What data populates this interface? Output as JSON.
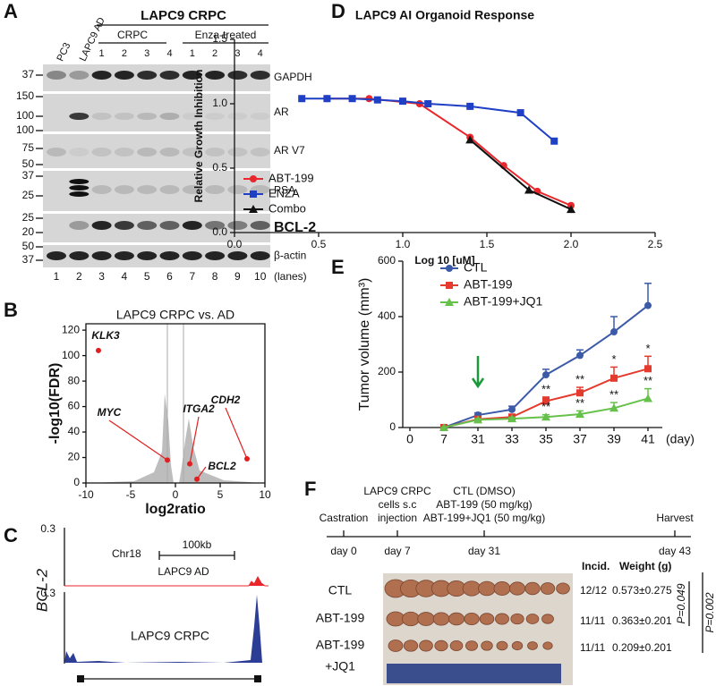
{
  "panel_letters": [
    "A",
    "B",
    "C",
    "D",
    "E",
    "F"
  ],
  "panel_a": {
    "header": "LAPC9 CRPC",
    "groups": [
      "CRPC",
      "Enza-treated"
    ],
    "cell_lines": [
      "PC3",
      "LAPC9 AD"
    ],
    "group_lanes": [
      "1",
      "2",
      "3",
      "4",
      "1",
      "2",
      "3",
      "4"
    ],
    "blots": [
      {
        "label": "GAPDH",
        "markers": [
          "37"
        ]
      },
      {
        "label": "AR",
        "markers": [
          "150",
          "100"
        ]
      },
      {
        "label": "AR V7",
        "markers": [
          "100",
          "75",
          "50"
        ]
      },
      {
        "label": "PSA",
        "markers": [
          "37",
          "25"
        ]
      },
      {
        "label": "BCL-2",
        "markers": [
          "25",
          "20"
        ]
      },
      {
        "label": "β-actin",
        "markers": [
          "50",
          "37"
        ]
      }
    ],
    "lanes": [
      "1",
      "2",
      "3",
      "4",
      "5",
      "6",
      "7",
      "8",
      "9",
      "10"
    ],
    "lanes_unit": "(lanes)"
  },
  "panel_c": {
    "chromosome": "Chr18",
    "scale": "100kb",
    "gene": "BCL-2",
    "tracks": [
      {
        "label": "LAPC9 AD",
        "max": "0.3"
      },
      {
        "label": "LAPC9 CRPC",
        "max": "0.3"
      }
    ]
  },
  "panel_f": {
    "timeline": [
      {
        "event": [
          "Castration"
        ],
        "day": "day 0"
      },
      {
        "event": [
          "LAPC9 CRPC",
          "cells s.c",
          "injection"
        ],
        "day": "day 7"
      },
      {
        "event": [
          "CTL (DMSO)",
          "ABT-199 (50 mg/kg)",
          "ABT-199+JQ1 (50 mg/kg)"
        ],
        "day": "day 31"
      },
      {
        "event": [
          "Harvest"
        ],
        "day": "day 43"
      }
    ],
    "table_header": [
      "Incid.",
      "Weight (g)"
    ],
    "groups": [
      {
        "label": [
          "CTL"
        ],
        "incidence": "12/12",
        "weight": "0.573±0.275"
      },
      {
        "label": [
          "ABT-199"
        ],
        "incidence": "11/11",
        "weight": "0.363±0.201"
      },
      {
        "label": [
          "ABT-199",
          "+JQ1"
        ],
        "incidence": "11/11",
        "weight": "0.209±0.201"
      }
    ],
    "p_values": [
      "P=0.049",
      "P=0.002"
    ]
  },
  "chart_data": [
    {
      "type": "scatter",
      "title": "LAPC9 CRPC vs. AD",
      "x_label": "log2ratio",
      "y_label": "-log10(FDR)",
      "x": [
        -8.6,
        -0.9,
        1.6,
        2.4,
        8
      ],
      "values": [
        104,
        18,
        15,
        3,
        19
      ],
      "labels": [
        "KLK3",
        "MYC",
        "ITGA2",
        "BCL2",
        "CDH2"
      ],
      "color": "#e02020",
      "xlim": [
        -10,
        10
      ],
      "xticks": [
        -10,
        -5,
        0,
        5,
        10
      ],
      "ylim": [
        0,
        125
      ],
      "yticks": [
        0,
        20,
        40,
        60,
        80,
        100,
        120
      ]
    },
    {
      "type": "line",
      "title": "LAPC9 AI Organoid Response",
      "x_label": "Log 10 [uM]",
      "y_label": "Relative Growth Inhibition",
      "legend": "lower left",
      "xlim": [
        0,
        2.5
      ],
      "xticks": [
        {
          "value": 0,
          "label": "0.0"
        },
        0.5,
        {
          "value": 1,
          "label": "1.0"
        },
        1.5,
        {
          "value": 2,
          "label": "2.0"
        },
        2.5
      ],
      "ylim": [
        0,
        1.5
      ],
      "yticks": [
        {
          "value": 0,
          "label": "0.0"
        },
        0.5,
        {
          "value": 1,
          "label": "1.0"
        },
        1.5
      ],
      "series": [
        {
          "name": "ABT-199",
          "color": "#e8262b",
          "marker": "circle",
          "x": [
            0.55,
            0.8,
            1.1,
            1.4,
            1.6,
            1.8,
            2.0
          ],
          "values": [
            1.04,
            1.04,
            1.0,
            0.74,
            0.52,
            0.32,
            0.21
          ]
        },
        {
          "name": "ENZA",
          "color": "#1f3fc4",
          "marker": "square",
          "x": [
            0.4,
            0.55,
            0.7,
            0.85,
            1.0,
            1.15,
            1.4,
            1.7,
            1.9
          ],
          "values": [
            1.04,
            1.04,
            1.04,
            1.03,
            1.02,
            1.0,
            0.98,
            0.93,
            0.71
          ]
        },
        {
          "name": "Combo",
          "color": "#111111",
          "marker": "triangle",
          "x": [
            1.4,
            1.75,
            2.0
          ],
          "values": [
            0.72,
            0.33,
            0.18
          ]
        }
      ]
    },
    {
      "type": "line",
      "y_label": "Tumor volume (mm³)",
      "x_label": "(day)",
      "legend": "upper left",
      "categories": [
        "0",
        "7",
        "31",
        "33",
        "35",
        "37",
        "39",
        "41"
      ],
      "ylim": [
        0,
        600
      ],
      "yticks": [
        0,
        200,
        400,
        600
      ],
      "series": [
        {
          "name": "CTL",
          "color": "#3b5aa8",
          "marker": "circle",
          "values": [
            null,
            0,
            45,
            65,
            190,
            260,
            345,
            440
          ],
          "errors": [
            null,
            0,
            8,
            12,
            20,
            20,
            55,
            80
          ],
          "significance": [
            null,
            null,
            null,
            null,
            null,
            null,
            null,
            null
          ]
        },
        {
          "name": "ABT-199",
          "color": "#e53a2e",
          "marker": "square",
          "values": [
            null,
            0,
            30,
            38,
            95,
            125,
            178,
            212
          ],
          "errors": [
            null,
            0,
            5,
            6,
            15,
            20,
            40,
            45
          ],
          "significance": [
            null,
            null,
            null,
            null,
            "**",
            "**",
            "*",
            "*"
          ]
        },
        {
          "name": "ABT-199+JQ1",
          "color": "#66c14a",
          "marker": "triangle",
          "values": [
            null,
            0,
            28,
            32,
            38,
            48,
            70,
            105
          ],
          "errors": [
            null,
            0,
            4,
            5,
            8,
            12,
            20,
            35
          ],
          "significance": [
            null,
            null,
            null,
            null,
            "**",
            "**",
            "**",
            "**"
          ]
        }
      ]
    }
  ]
}
